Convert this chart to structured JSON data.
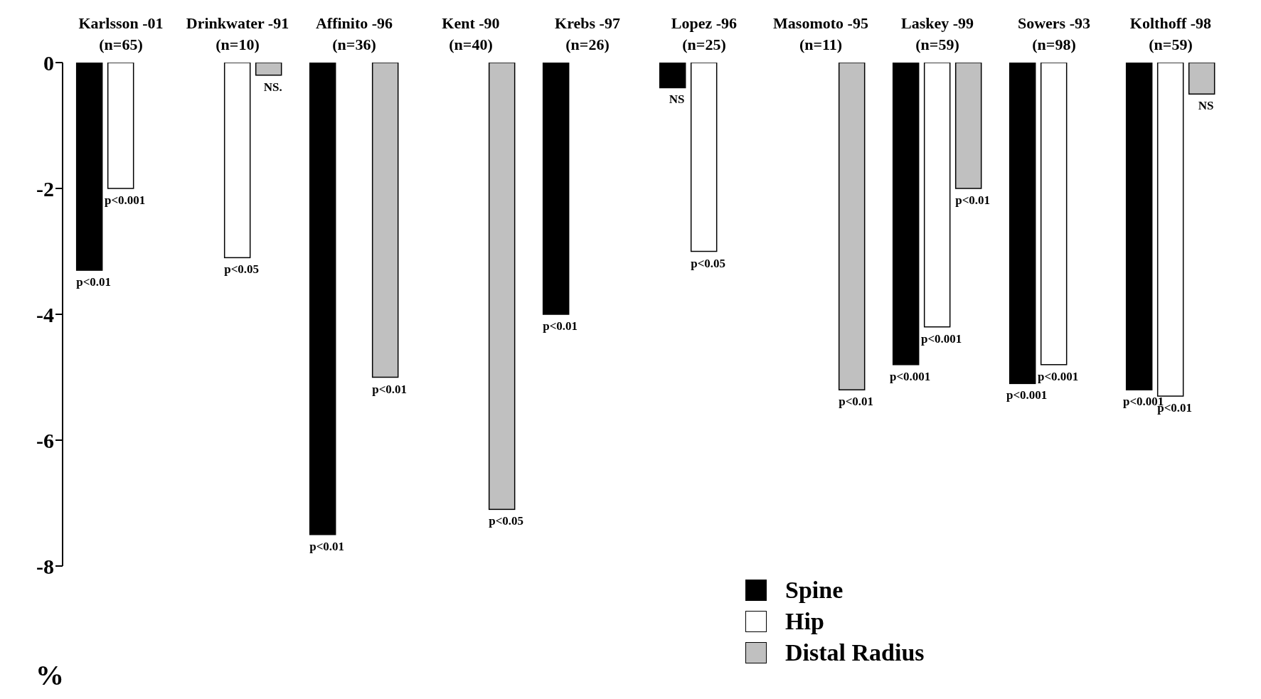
{
  "chart_data": {
    "type": "bar",
    "ylabel": "%",
    "categories": [
      "Karlsson -01\n(n=65)",
      "Drinkwater -91\n(n=10)",
      "Affinito -96\n(n=36)",
      "Kent -90\n(n=40)",
      "Krebs -97\n(n=26)",
      "Lopez -96\n(n=25)",
      "Masomoto -95\n(n=11)",
      "Laskey -99\n(n=59)",
      "Sowers -93\n(n=98)",
      "Kolthoff -98\n(n=59)"
    ],
    "series": [
      {
        "name": "Spine",
        "color": "#000000",
        "values": [
          -3.3,
          null,
          -7.5,
          null,
          -4.0,
          -0.4,
          null,
          -4.8,
          -5.1,
          -5.2
        ],
        "value_labels": [
          "p<0.01",
          null,
          "p<0.01",
          null,
          "p<0.01",
          "NS",
          null,
          "p<0.001",
          "p<0.001",
          "p<0.001"
        ]
      },
      {
        "name": "Hip",
        "color": "#ffffff",
        "values": [
          -2.0,
          -3.1,
          null,
          null,
          null,
          -3.0,
          null,
          -4.2,
          -4.8,
          -5.3
        ],
        "value_labels": [
          "p<0.001",
          "p<0.05",
          null,
          null,
          null,
          "p<0.05",
          null,
          "p<0.001",
          "p<0.001",
          "p<0.01"
        ]
      },
      {
        "name": "Distal Radius",
        "color": "#c0c0c0",
        "values": [
          null,
          -0.2,
          -5.0,
          -7.1,
          null,
          null,
          -5.2,
          -2.0,
          null,
          -0.5
        ],
        "value_labels": [
          null,
          "NS.",
          "p<0.01",
          "p<0.05",
          null,
          null,
          "p<0.01",
          "p<0.01",
          null,
          "NS"
        ]
      }
    ],
    "ylim": [
      -8,
      0
    ],
    "yticks": [
      -8,
      -6,
      -4,
      -2,
      0
    ],
    "grid": false,
    "legend": "bottom right"
  }
}
